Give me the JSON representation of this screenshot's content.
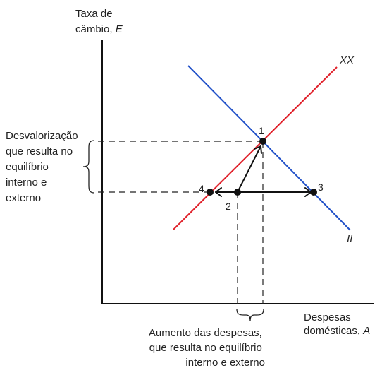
{
  "axes": {
    "y_label_line1": "Taxa de",
    "y_label_line2_text": "câmbio, ",
    "y_label_line2_var": "E",
    "x_label_line1": "Despesas",
    "x_label_line2_text": "domésticas, ",
    "x_label_line2_var": "A"
  },
  "curves": {
    "xx": {
      "label": "XX",
      "color": "#e0202a"
    },
    "ii": {
      "label": "II",
      "color": "#2050c8"
    }
  },
  "points": {
    "p1": "1",
    "p2": "2",
    "p3": "3",
    "p4": "4"
  },
  "annotations": {
    "left_brace": [
      "Desvalorização",
      "que resulta no",
      "equilíbrio",
      "interno e",
      "externo"
    ],
    "bottom_brace": [
      "Aumento das despesas,",
      "que resulta no equilíbrio",
      "interno e externo"
    ]
  }
}
